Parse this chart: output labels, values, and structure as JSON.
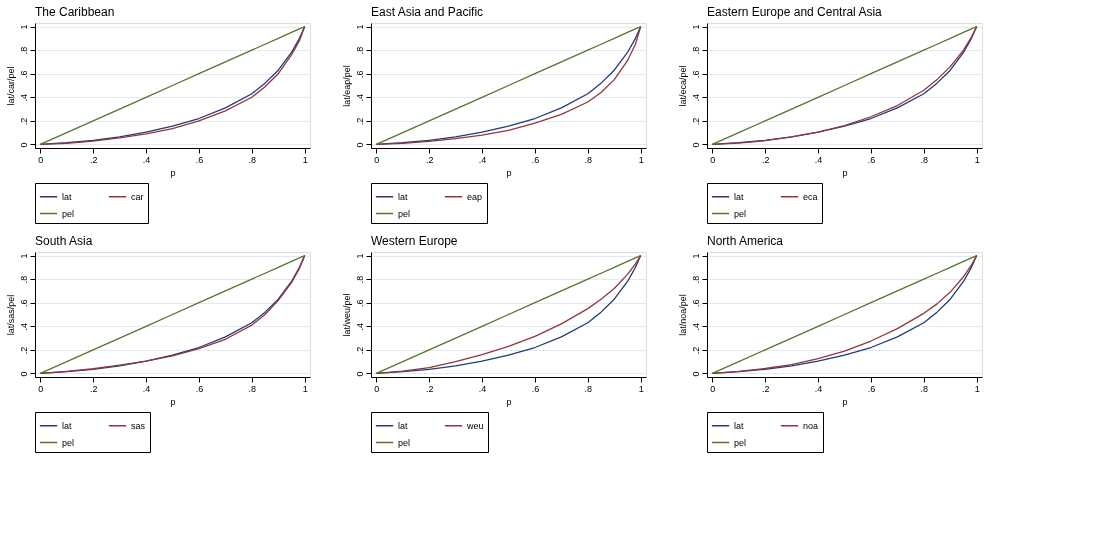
{
  "chart_data": [
    {
      "type": "line",
      "title": "The Caribbean",
      "xlabel": "p",
      "ylabel": "lat/car/pel",
      "x": [
        0,
        0.1,
        0.2,
        0.3,
        0.4,
        0.5,
        0.6,
        0.7,
        0.8,
        0.85,
        0.9,
        0.95,
        0.98,
        1
      ],
      "xlim": [
        -0.02,
        1.02
      ],
      "ylim": [
        -0.03,
        1.03
      ],
      "xticks": [
        0,
        {
          "value": 0.2,
          "label": ".2"
        },
        {
          "value": 0.4,
          "label": ".4"
        },
        {
          "value": 0.6,
          "label": ".6"
        },
        {
          "value": 0.8,
          "label": ".8"
        },
        1
      ],
      "yticks": [
        0,
        {
          "value": 0.2,
          "label": ".2"
        },
        {
          "value": 0.4,
          "label": ".4"
        },
        {
          "value": 0.6,
          "label": ".6"
        },
        {
          "value": 0.8,
          "label": ".8"
        },
        1
      ],
      "grid": "y",
      "legend": "bottom",
      "line_style": "solid",
      "marker": "none",
      "series": [
        {
          "name": "lat",
          "color": "#1f3b78",
          "values": [
            0,
            0.015,
            0.035,
            0.065,
            0.105,
            0.155,
            0.22,
            0.31,
            0.43,
            0.52,
            0.63,
            0.78,
            0.9,
            1
          ]
        },
        {
          "name": "car",
          "color": "#93363c",
          "values": [
            0,
            0.01,
            0.028,
            0.055,
            0.09,
            0.135,
            0.2,
            0.285,
            0.4,
            0.49,
            0.6,
            0.76,
            0.88,
            1
          ]
        },
        {
          "name": "pel",
          "color": "#55752f",
          "values": [
            0,
            0.1,
            0.2,
            0.3,
            0.4,
            0.5,
            0.6,
            0.7,
            0.8,
            0.85,
            0.9,
            0.95,
            0.98,
            1
          ]
        }
      ]
    },
    {
      "type": "line",
      "title": "East Asia and Pacific",
      "xlabel": "p",
      "ylabel": "lat/eap/pel",
      "x": [
        0,
        0.1,
        0.2,
        0.3,
        0.4,
        0.5,
        0.6,
        0.7,
        0.8,
        0.85,
        0.9,
        0.95,
        0.98,
        1
      ],
      "xlim": [
        -0.02,
        1.02
      ],
      "ylim": [
        -0.03,
        1.03
      ],
      "xticks": [
        0,
        {
          "value": 0.2,
          "label": ".2"
        },
        {
          "value": 0.4,
          "label": ".4"
        },
        {
          "value": 0.6,
          "label": ".6"
        },
        {
          "value": 0.8,
          "label": ".8"
        },
        1
      ],
      "yticks": [
        0,
        {
          "value": 0.2,
          "label": ".2"
        },
        {
          "value": 0.4,
          "label": ".4"
        },
        {
          "value": 0.6,
          "label": ".6"
        },
        {
          "value": 0.8,
          "label": ".8"
        },
        1
      ],
      "grid": "y",
      "legend": "bottom",
      "line_style": "solid",
      "marker": "none",
      "series": [
        {
          "name": "lat",
          "color": "#1f3b78",
          "values": [
            0,
            0.015,
            0.035,
            0.065,
            0.105,
            0.155,
            0.22,
            0.31,
            0.43,
            0.52,
            0.63,
            0.78,
            0.9,
            1
          ]
        },
        {
          "name": "eap",
          "color": "#93363c",
          "values": [
            0,
            0.01,
            0.027,
            0.05,
            0.08,
            0.12,
            0.18,
            0.255,
            0.36,
            0.44,
            0.55,
            0.71,
            0.85,
            1
          ]
        },
        {
          "name": "pel",
          "color": "#55752f",
          "values": [
            0,
            0.1,
            0.2,
            0.3,
            0.4,
            0.5,
            0.6,
            0.7,
            0.8,
            0.85,
            0.9,
            0.95,
            0.98,
            1
          ]
        }
      ]
    },
    {
      "type": "line",
      "title": "Eastern Europe and Central Asia",
      "xlabel": "p",
      "ylabel": "lat/eca/pel",
      "x": [
        0,
        0.1,
        0.2,
        0.3,
        0.4,
        0.5,
        0.6,
        0.7,
        0.8,
        0.85,
        0.9,
        0.95,
        0.98,
        1
      ],
      "xlim": [
        -0.02,
        1.02
      ],
      "ylim": [
        -0.03,
        1.03
      ],
      "xticks": [
        0,
        {
          "value": 0.2,
          "label": ".2"
        },
        {
          "value": 0.4,
          "label": ".4"
        },
        {
          "value": 0.6,
          "label": ".6"
        },
        {
          "value": 0.8,
          "label": ".8"
        },
        1
      ],
      "yticks": [
        0,
        {
          "value": 0.2,
          "label": ".2"
        },
        {
          "value": 0.4,
          "label": ".4"
        },
        {
          "value": 0.6,
          "label": ".6"
        },
        {
          "value": 0.8,
          "label": ".8"
        },
        1
      ],
      "grid": "y",
      "legend": "bottom",
      "line_style": "solid",
      "marker": "none",
      "series": [
        {
          "name": "lat",
          "color": "#1f3b78",
          "values": [
            0,
            0.015,
            0.035,
            0.065,
            0.105,
            0.155,
            0.22,
            0.31,
            0.43,
            0.52,
            0.63,
            0.78,
            0.9,
            1
          ]
        },
        {
          "name": "eca",
          "color": "#93363c",
          "values": [
            0,
            0.012,
            0.032,
            0.065,
            0.105,
            0.16,
            0.235,
            0.33,
            0.46,
            0.55,
            0.66,
            0.8,
            0.91,
            1
          ]
        },
        {
          "name": "pel",
          "color": "#55752f",
          "values": [
            0,
            0.1,
            0.2,
            0.3,
            0.4,
            0.5,
            0.6,
            0.7,
            0.8,
            0.85,
            0.9,
            0.95,
            0.98,
            1
          ]
        }
      ]
    },
    {
      "type": "line",
      "title": "South Asia",
      "xlabel": "p",
      "ylabel": "lat/sas/pel",
      "x": [
        0,
        0.1,
        0.2,
        0.3,
        0.4,
        0.5,
        0.6,
        0.7,
        0.8,
        0.85,
        0.9,
        0.95,
        0.98,
        1
      ],
      "xlim": [
        -0.02,
        1.02
      ],
      "ylim": [
        -0.03,
        1.03
      ],
      "xticks": [
        0,
        {
          "value": 0.2,
          "label": ".2"
        },
        {
          "value": 0.4,
          "label": ".4"
        },
        {
          "value": 0.6,
          "label": ".6"
        },
        {
          "value": 0.8,
          "label": ".8"
        },
        1
      ],
      "yticks": [
        0,
        {
          "value": 0.2,
          "label": ".2"
        },
        {
          "value": 0.4,
          "label": ".4"
        },
        {
          "value": 0.6,
          "label": ".6"
        },
        {
          "value": 0.8,
          "label": ".8"
        },
        1
      ],
      "grid": "y",
      "legend": "bottom",
      "line_style": "solid",
      "marker": "none",
      "series": [
        {
          "name": "lat",
          "color": "#1f3b78",
          "values": [
            0,
            0.015,
            0.035,
            0.065,
            0.105,
            0.155,
            0.22,
            0.31,
            0.43,
            0.52,
            0.63,
            0.78,
            0.9,
            1
          ]
        },
        {
          "name": "sas",
          "color": "#93363c",
          "values": [
            0,
            0.018,
            0.04,
            0.07,
            0.105,
            0.15,
            0.21,
            0.29,
            0.41,
            0.5,
            0.62,
            0.77,
            0.89,
            1
          ]
        },
        {
          "name": "pel",
          "color": "#55752f",
          "values": [
            0,
            0.1,
            0.2,
            0.3,
            0.4,
            0.5,
            0.6,
            0.7,
            0.8,
            0.85,
            0.9,
            0.95,
            0.98,
            1
          ]
        }
      ]
    },
    {
      "type": "line",
      "title": "Western Europe",
      "xlabel": "p",
      "ylabel": "lat/weu/pel",
      "x": [
        0,
        0.1,
        0.2,
        0.3,
        0.4,
        0.5,
        0.6,
        0.7,
        0.8,
        0.85,
        0.9,
        0.95,
        0.98,
        1
      ],
      "xlim": [
        -0.02,
        1.02
      ],
      "ylim": [
        -0.03,
        1.03
      ],
      "xticks": [
        0,
        {
          "value": 0.2,
          "label": ".2"
        },
        {
          "value": 0.4,
          "label": ".4"
        },
        {
          "value": 0.6,
          "label": ".6"
        },
        {
          "value": 0.8,
          "label": ".8"
        },
        1
      ],
      "yticks": [
        0,
        {
          "value": 0.2,
          "label": ".2"
        },
        {
          "value": 0.4,
          "label": ".4"
        },
        {
          "value": 0.6,
          "label": ".6"
        },
        {
          "value": 0.8,
          "label": ".8"
        },
        1
      ],
      "grid": "y",
      "legend": "bottom",
      "line_style": "solid",
      "marker": "none",
      "series": [
        {
          "name": "lat",
          "color": "#1f3b78",
          "values": [
            0,
            0.015,
            0.035,
            0.065,
            0.105,
            0.155,
            0.22,
            0.31,
            0.43,
            0.52,
            0.63,
            0.78,
            0.9,
            1
          ]
        },
        {
          "name": "weu",
          "color": "#93363c",
          "values": [
            0,
            0.02,
            0.05,
            0.1,
            0.16,
            0.23,
            0.315,
            0.42,
            0.55,
            0.63,
            0.72,
            0.84,
            0.93,
            1
          ]
        },
        {
          "name": "pel",
          "color": "#55752f",
          "values": [
            0,
            0.1,
            0.2,
            0.3,
            0.4,
            0.5,
            0.6,
            0.7,
            0.8,
            0.85,
            0.9,
            0.95,
            0.98,
            1
          ]
        }
      ]
    },
    {
      "type": "line",
      "title": "North America",
      "xlabel": "p",
      "ylabel": "lat/noa/pel",
      "x": [
        0,
        0.1,
        0.2,
        0.3,
        0.4,
        0.5,
        0.6,
        0.7,
        0.8,
        0.85,
        0.9,
        0.95,
        0.98,
        1
      ],
      "xlim": [
        -0.02,
        1.02
      ],
      "ylim": [
        -0.03,
        1.03
      ],
      "xticks": [
        0,
        {
          "value": 0.2,
          "label": ".2"
        },
        {
          "value": 0.4,
          "label": ".4"
        },
        {
          "value": 0.6,
          "label": ".6"
        },
        {
          "value": 0.8,
          "label": ".8"
        },
        1
      ],
      "yticks": [
        0,
        {
          "value": 0.2,
          "label": ".2"
        },
        {
          "value": 0.4,
          "label": ".4"
        },
        {
          "value": 0.6,
          "label": ".6"
        },
        {
          "value": 0.8,
          "label": ".8"
        },
        1
      ],
      "grid": "y",
      "legend": "bottom",
      "line_style": "solid",
      "marker": "none",
      "series": [
        {
          "name": "lat",
          "color": "#1f3b78",
          "values": [
            0,
            0.015,
            0.035,
            0.065,
            0.105,
            0.155,
            0.22,
            0.31,
            0.43,
            0.52,
            0.63,
            0.78,
            0.9,
            1
          ]
        },
        {
          "name": "noa",
          "color": "#93363c",
          "values": [
            0,
            0.018,
            0.042,
            0.075,
            0.125,
            0.19,
            0.275,
            0.38,
            0.51,
            0.59,
            0.69,
            0.82,
            0.92,
            1
          ]
        },
        {
          "name": "pel",
          "color": "#55752f",
          "values": [
            0,
            0.1,
            0.2,
            0.3,
            0.4,
            0.5,
            0.6,
            0.7,
            0.8,
            0.85,
            0.9,
            0.95,
            0.98,
            1
          ]
        }
      ]
    }
  ]
}
